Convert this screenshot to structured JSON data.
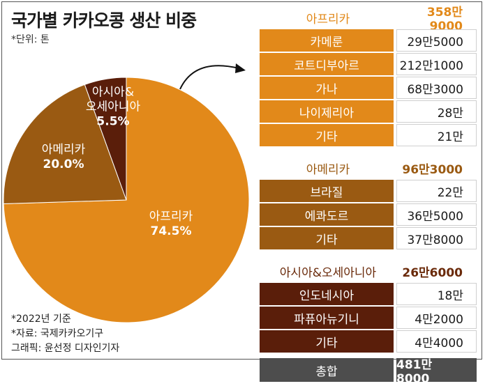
{
  "title": "국가별 카카오콩 생산 비중",
  "unit": "*단위: 톤",
  "notes": [
    "*2022년 기준",
    "*자료: 국제카카오기구",
    "그래픽: 윤선정 디자인기자"
  ],
  "colors": {
    "africa": "#e2891a",
    "america": "#9a5a12",
    "asia": "#5a1e0a",
    "africa_text": "#e2891a",
    "america_text": "#9a5a12",
    "asia_text": "#6a2a0a",
    "total_bg": "#4d4d4d"
  },
  "chart_data": {
    "type": "pie",
    "slices": [
      {
        "label": "아프리카",
        "value": 74.5,
        "display": "74.5%"
      },
      {
        "label": "아메리카",
        "value": 20.0,
        "display": "20.0%"
      },
      {
        "label_lines": [
          "아시아&",
          "오세아니아"
        ],
        "value": 5.5,
        "display": "5.5%"
      }
    ]
  },
  "table": {
    "groups": [
      {
        "name": "아프리카",
        "total": "358만9000",
        "rows": [
          {
            "name": "카메룬",
            "value": "29만5000"
          },
          {
            "name": "코트디부아르",
            "value": "212만1000"
          },
          {
            "name": "가나",
            "value": "68만3000"
          },
          {
            "name": "나이제리아",
            "value": "28만"
          },
          {
            "name": "기타",
            "value": "21만"
          }
        ]
      },
      {
        "name": "아메리카",
        "total": "96만3000",
        "rows": [
          {
            "name": "브라질",
            "value": "22만"
          },
          {
            "name": "에콰도르",
            "value": "36만5000"
          },
          {
            "name": "기타",
            "value": "37만8000"
          }
        ]
      },
      {
        "name": "아시아&오세아니아",
        "total": "26만6000",
        "rows": [
          {
            "name": "인도네시아",
            "value": "18만"
          },
          {
            "name": "파퓨아뉴기니",
            "value": "4만2000"
          },
          {
            "name": "기타",
            "value": "4만4000"
          }
        ]
      }
    ],
    "total": {
      "name": "총합",
      "value": "481만8000"
    }
  }
}
